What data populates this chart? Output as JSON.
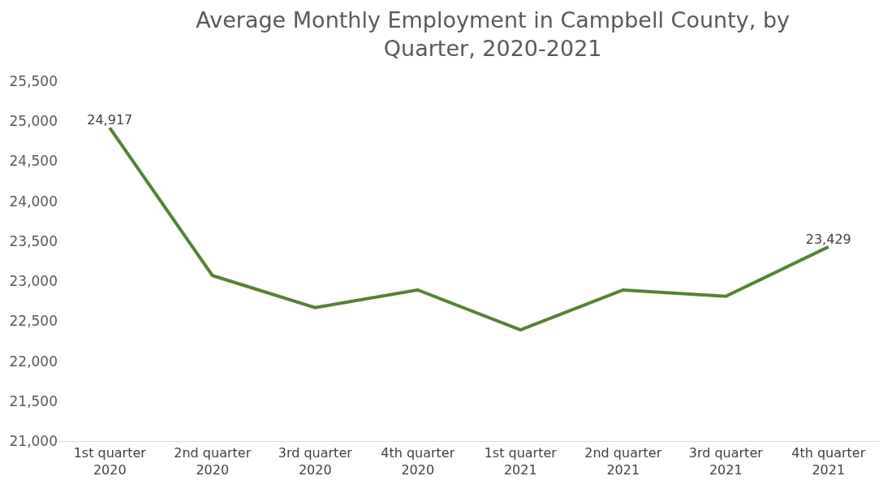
{
  "chart_data": {
    "type": "line",
    "title": "Average Monthly Employment in Campbell County, by Quarter, 2020-2021",
    "categories": [
      "1st quarter 2020",
      "2nd quarter 2020",
      "3rd quarter 2020",
      "4th quarter 2020",
      "1st quarter 2021",
      "2nd quarter 2021",
      "3rd quarter 2021",
      "4th quarter 2021"
    ],
    "series": [
      {
        "color": "#548235",
        "values": [
          24917,
          23070,
          22670,
          22890,
          22390,
          22890,
          22810,
          23429
        ],
        "value_labels": [
          "24,917",
          null,
          null,
          null,
          null,
          null,
          null,
          "23,429"
        ]
      }
    ],
    "ylim": [
      21000,
      25500
    ],
    "yticks": [
      {
        "value": 21000,
        "label": "21,000"
      },
      {
        "value": 21500,
        "label": "21,500"
      },
      {
        "value": 22000,
        "label": "22,000"
      },
      {
        "value": 22500,
        "label": "22,500"
      },
      {
        "value": 23000,
        "label": "23,000"
      },
      {
        "value": 23500,
        "label": "23,500"
      },
      {
        "value": 24000,
        "label": "24,000"
      },
      {
        "value": 24500,
        "label": "24,500"
      },
      {
        "value": 25000,
        "label": "25,000"
      },
      {
        "value": 25500,
        "label": "25,500"
      }
    ],
    "marker": "none",
    "line_style": "solid"
  }
}
